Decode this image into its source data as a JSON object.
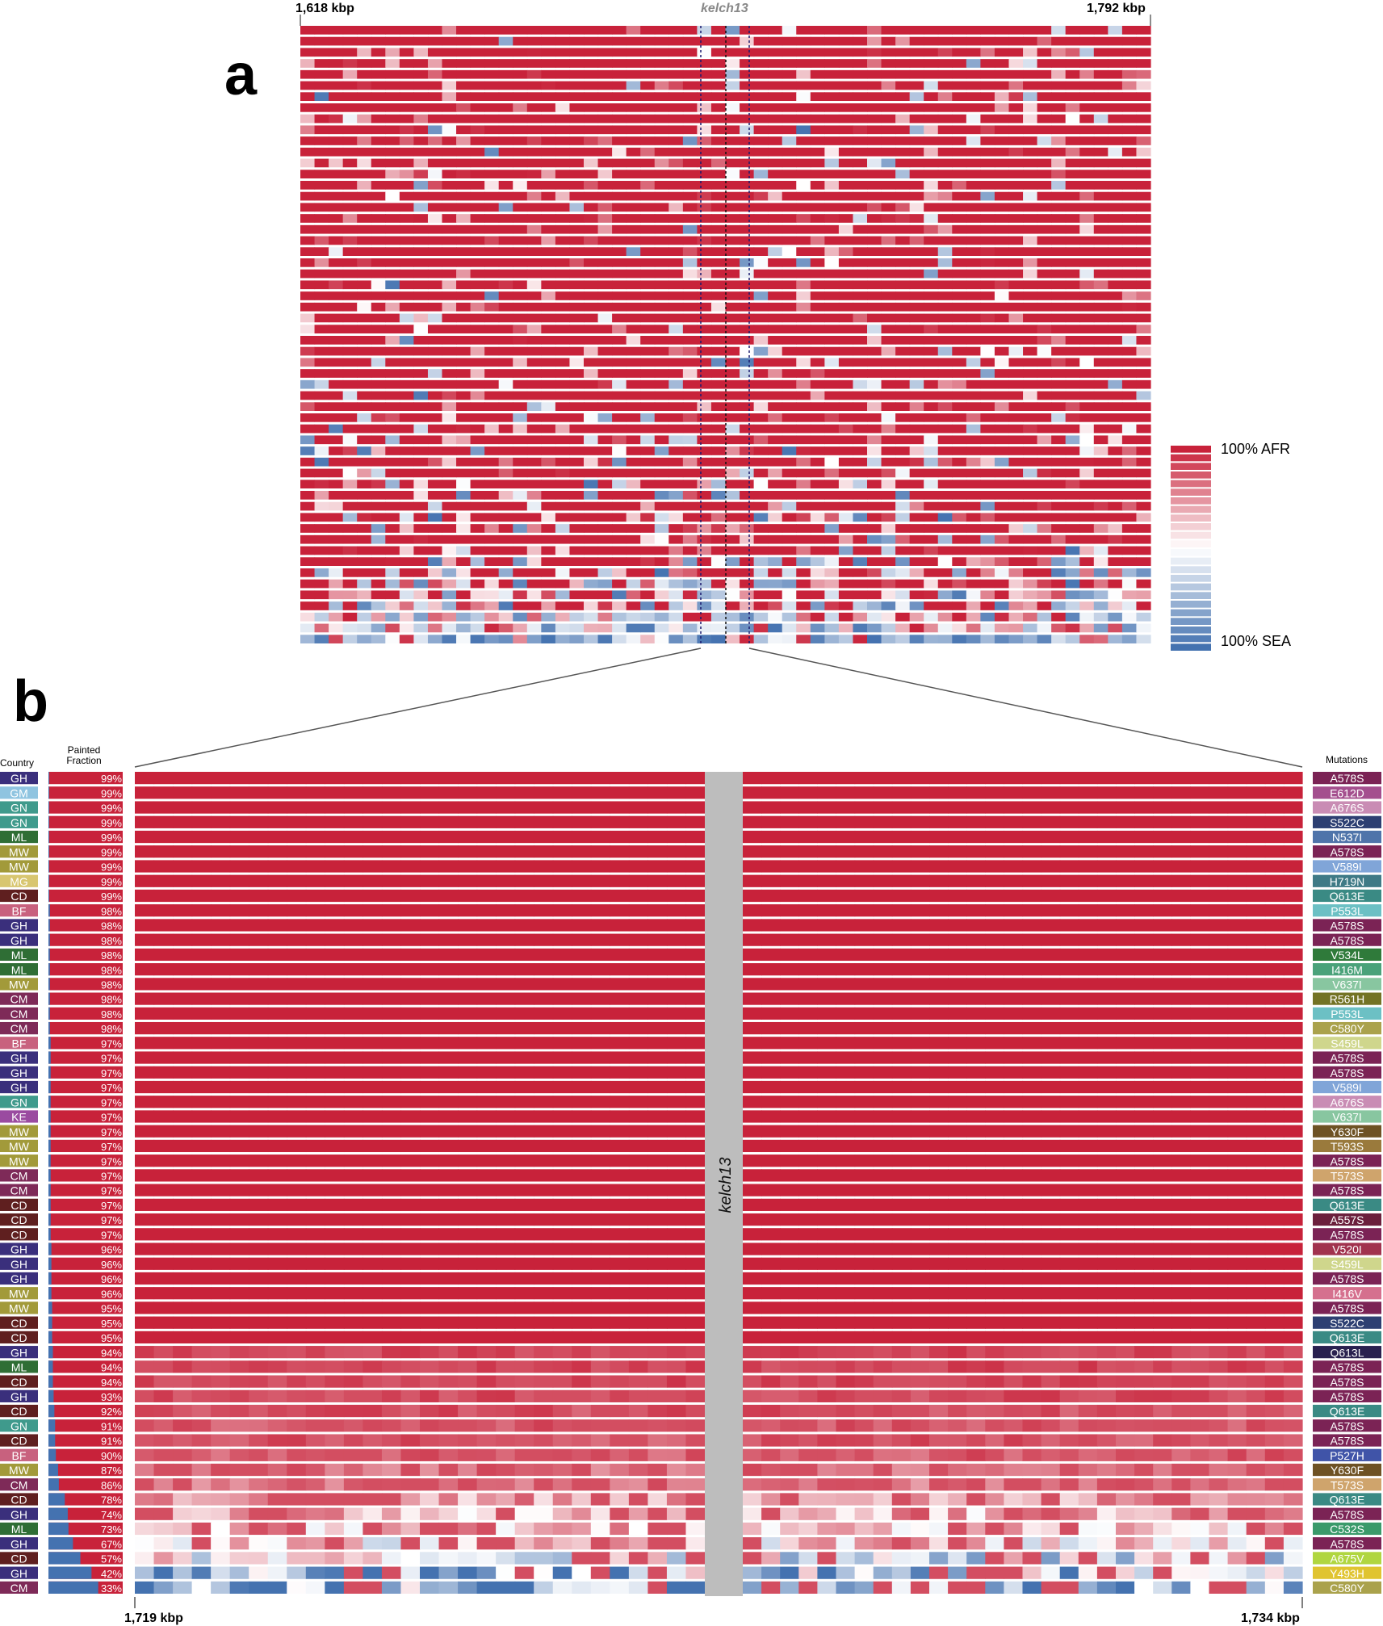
{
  "colors": {
    "afr": "#c8223a",
    "sea": "#4472b0",
    "mid": "#ffffff",
    "gene": "#bdbdbd",
    "axis": "#666666"
  },
  "panel_a": {
    "letter": "a",
    "x_left_label": "1,618 kbp",
    "x_right_label": "1,792 kbp",
    "gene_label": "kelch13",
    "legend_top": "100% AFR",
    "legend_bottom": "100% SEA"
  },
  "panel_b": {
    "letter": "b",
    "country_header": "Country",
    "painted_header_1": "Painted",
    "painted_header_2": "Fraction",
    "mutations_header": "Mutations",
    "gene_label": "kelch13",
    "x_left_label": "1,719 kbp",
    "x_right_label": "1,734 kbp"
  },
  "country_colors": {
    "GH": "#3a2f7c",
    "GM": "#8fc4e0",
    "GN": "#3f9a8c",
    "ML": "#2f6e35",
    "MW": "#a29a3a",
    "MG": "#d8c670",
    "CD": "#5f1f1f",
    "BF": "#c8617e",
    "CM": "#7e2a58",
    "KE": "#9a4ba0"
  },
  "mutation_colors": {
    "A578S": "#7b2355",
    "E612D": "#a44f8e",
    "A676S": "#c98cb4",
    "S522C": "#2d3f72",
    "N537I": "#4f74aa",
    "V589I": "#80a5d8",
    "H719N": "#3f7a86",
    "Q613E": "#3a8a84",
    "P553L": "#6cc0c4",
    "V534L": "#2f7a3a",
    "I416M": "#4aa27a",
    "V637I": "#88c6a0",
    "R561H": "#737325",
    "C580Y": "#aaa24c",
    "S459L": "#cfd68c",
    "Y630F": "#6e5224",
    "T593S": "#9a7a3c",
    "T573S": "#cfa46c",
    "A557S": "#6b1f3c",
    "V520I": "#a1324e",
    "I416V": "#d5708e",
    "Q613L": "#29204f",
    "P527H": "#4054a8",
    "C532S": "#3a9a6a",
    "A675V": "#b0d640",
    "Y493H": "#e0c430"
  },
  "chart_data": {
    "type": "heatmap",
    "scale": {
      "min_label": "100% SEA",
      "max_label": "100% AFR"
    },
    "panel_b_rows": [
      {
        "country": "GH",
        "fraction": "99%",
        "mutation": "A578S"
      },
      {
        "country": "GM",
        "fraction": "99%",
        "mutation": "E612D"
      },
      {
        "country": "GN",
        "fraction": "99%",
        "mutation": "A676S"
      },
      {
        "country": "GN",
        "fraction": "99%",
        "mutation": "S522C"
      },
      {
        "country": "ML",
        "fraction": "99%",
        "mutation": "N537I"
      },
      {
        "country": "MW",
        "fraction": "99%",
        "mutation": "A578S"
      },
      {
        "country": "MW",
        "fraction": "99%",
        "mutation": "V589I"
      },
      {
        "country": "MG",
        "fraction": "99%",
        "mutation": "H719N"
      },
      {
        "country": "CD",
        "fraction": "99%",
        "mutation": "Q613E"
      },
      {
        "country": "BF",
        "fraction": "98%",
        "mutation": "P553L"
      },
      {
        "country": "GH",
        "fraction": "98%",
        "mutation": "A578S"
      },
      {
        "country": "GH",
        "fraction": "98%",
        "mutation": "A578S"
      },
      {
        "country": "ML",
        "fraction": "98%",
        "mutation": "V534L"
      },
      {
        "country": "ML",
        "fraction": "98%",
        "mutation": "I416M"
      },
      {
        "country": "MW",
        "fraction": "98%",
        "mutation": "V637I"
      },
      {
        "country": "CM",
        "fraction": "98%",
        "mutation": "R561H"
      },
      {
        "country": "CM",
        "fraction": "98%",
        "mutation": "P553L"
      },
      {
        "country": "CM",
        "fraction": "98%",
        "mutation": "C580Y"
      },
      {
        "country": "BF",
        "fraction": "97%",
        "mutation": "S459L"
      },
      {
        "country": "GH",
        "fraction": "97%",
        "mutation": "A578S"
      },
      {
        "country": "GH",
        "fraction": "97%",
        "mutation": "A578S"
      },
      {
        "country": "GH",
        "fraction": "97%",
        "mutation": "V589I"
      },
      {
        "country": "GN",
        "fraction": "97%",
        "mutation": "A676S"
      },
      {
        "country": "KE",
        "fraction": "97%",
        "mutation": "V637I"
      },
      {
        "country": "MW",
        "fraction": "97%",
        "mutation": "Y630F"
      },
      {
        "country": "MW",
        "fraction": "97%",
        "mutation": "T593S"
      },
      {
        "country": "MW",
        "fraction": "97%",
        "mutation": "A578S"
      },
      {
        "country": "CM",
        "fraction": "97%",
        "mutation": "T573S"
      },
      {
        "country": "CM",
        "fraction": "97%",
        "mutation": "A578S"
      },
      {
        "country": "CD",
        "fraction": "97%",
        "mutation": "Q613E"
      },
      {
        "country": "CD",
        "fraction": "97%",
        "mutation": "A557S"
      },
      {
        "country": "CD",
        "fraction": "97%",
        "mutation": "A578S"
      },
      {
        "country": "GH",
        "fraction": "96%",
        "mutation": "V520I"
      },
      {
        "country": "GH",
        "fraction": "96%",
        "mutation": "S459L"
      },
      {
        "country": "GH",
        "fraction": "96%",
        "mutation": "A578S"
      },
      {
        "country": "MW",
        "fraction": "96%",
        "mutation": "I416V"
      },
      {
        "country": "MW",
        "fraction": "95%",
        "mutation": "A578S"
      },
      {
        "country": "CD",
        "fraction": "95%",
        "mutation": "S522C"
      },
      {
        "country": "CD",
        "fraction": "95%",
        "mutation": "Q613E"
      },
      {
        "country": "GH",
        "fraction": "94%",
        "mutation": "Q613L"
      },
      {
        "country": "ML",
        "fraction": "94%",
        "mutation": "A578S"
      },
      {
        "country": "CD",
        "fraction": "94%",
        "mutation": "A578S"
      },
      {
        "country": "GH",
        "fraction": "93%",
        "mutation": "A578S"
      },
      {
        "country": "CD",
        "fraction": "92%",
        "mutation": "Q613E"
      },
      {
        "country": "GN",
        "fraction": "91%",
        "mutation": "A578S"
      },
      {
        "country": "CD",
        "fraction": "91%",
        "mutation": "A578S"
      },
      {
        "country": "BF",
        "fraction": "90%",
        "mutation": "P527H"
      },
      {
        "country": "MW",
        "fraction": "87%",
        "mutation": "Y630F"
      },
      {
        "country": "CM",
        "fraction": "86%",
        "mutation": "T573S"
      },
      {
        "country": "CD",
        "fraction": "78%",
        "mutation": "Q613E"
      },
      {
        "country": "GH",
        "fraction": "74%",
        "mutation": "A578S"
      },
      {
        "country": "ML",
        "fraction": "73%",
        "mutation": "C532S"
      },
      {
        "country": "GH",
        "fraction": "67%",
        "mutation": "A578S"
      },
      {
        "country": "CD",
        "fraction": "57%",
        "mutation": "A675V"
      },
      {
        "country": "GH",
        "fraction": "42%",
        "mutation": "Y493H"
      },
      {
        "country": "CM",
        "fraction": "33%",
        "mutation": "C580Y"
      }
    ]
  }
}
